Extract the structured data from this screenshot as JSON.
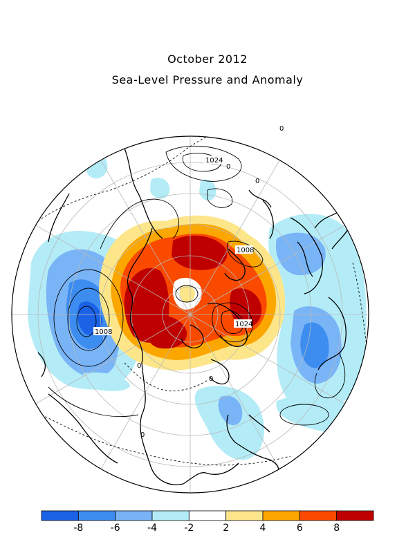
{
  "title": "October 2012",
  "subtitle": "Sea-Level Pressure and Anomaly",
  "contour_labels": [
    {
      "text": "1024",
      "id": "pacific-high-label"
    },
    {
      "text": "1008",
      "id": "aleutian-low-label"
    },
    {
      "text": "1008",
      "id": "icelandic-low-label"
    },
    {
      "text": "1024",
      "id": "greenland-high-label"
    },
    {
      "text": "0",
      "id": "zero-label-a"
    },
    {
      "text": "0",
      "id": "zero-label-b"
    },
    {
      "text": "0",
      "id": "zero-label-c"
    },
    {
      "text": "0",
      "id": "zero-label-d"
    },
    {
      "text": "0",
      "id": "zero-label-e"
    },
    {
      "text": "0",
      "id": "zero-label-f"
    }
  ],
  "colorbar": {
    "bins": [
      "#1b62e6",
      "#3d8df0",
      "#79b4f7",
      "#b3ecf7",
      "#ffffff",
      "#fde68a",
      "#fba700",
      "#fa4a00",
      "#be0000"
    ],
    "tick_labels": [
      "-8",
      "-6",
      "-4",
      "-2",
      "2",
      "4",
      "6",
      "8"
    ]
  }
}
